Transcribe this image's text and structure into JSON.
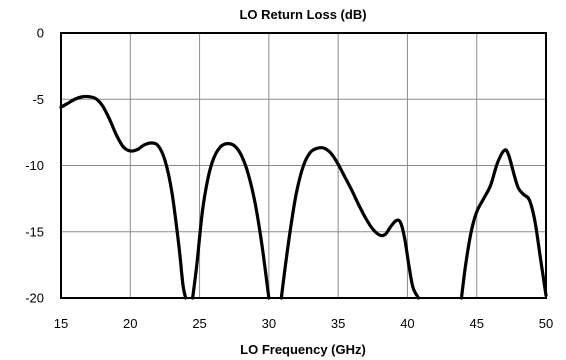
{
  "chart_data": {
    "type": "line",
    "title": "LO Return Loss (dB)",
    "xlabel": "LO Frequency (GHz)",
    "ylabel": "",
    "xlim": [
      15,
      50
    ],
    "ylim": [
      -20,
      0
    ],
    "xticks": [
      15,
      20,
      25,
      30,
      35,
      40,
      45,
      50
    ],
    "yticks": [
      0,
      -5,
      -10,
      -15,
      -20
    ],
    "grid": true,
    "legend": "none",
    "series": [
      {
        "segments": [
          [
            [
              15.0,
              -5.6
            ],
            [
              15.5,
              -5.3
            ],
            [
              16.0,
              -5.0
            ],
            [
              16.5,
              -4.82
            ],
            [
              17.0,
              -4.8
            ],
            [
              17.5,
              -4.95
            ],
            [
              18.0,
              -5.5
            ],
            [
              18.5,
              -6.5
            ],
            [
              19.0,
              -7.7
            ],
            [
              19.5,
              -8.6
            ],
            [
              20.0,
              -8.9
            ],
            [
              20.5,
              -8.8
            ],
            [
              21.0,
              -8.45
            ],
            [
              21.5,
              -8.3
            ],
            [
              22.0,
              -8.5
            ],
            [
              22.5,
              -9.6
            ],
            [
              23.0,
              -12.0
            ],
            [
              23.5,
              -16.0
            ],
            [
              23.8,
              -19.0
            ],
            [
              24.0,
              -20.0
            ]
          ],
          [
            [
              24.5,
              -20.0
            ],
            [
              24.8,
              -17.5
            ],
            [
              25.2,
              -13.5
            ],
            [
              25.6,
              -11.0
            ],
            [
              26.0,
              -9.5
            ],
            [
              26.5,
              -8.6
            ],
            [
              27.0,
              -8.35
            ],
            [
              27.5,
              -8.5
            ],
            [
              28.0,
              -9.2
            ],
            [
              28.5,
              -10.6
            ],
            [
              29.0,
              -12.8
            ],
            [
              29.5,
              -16.0
            ],
            [
              30.0,
              -20.0
            ]
          ],
          [
            [
              30.9,
              -20.0
            ],
            [
              31.2,
              -17.5
            ],
            [
              31.6,
              -14.5
            ],
            [
              32.0,
              -12.0
            ],
            [
              32.5,
              -10.0
            ],
            [
              33.0,
              -9.0
            ],
            [
              33.5,
              -8.7
            ],
            [
              34.0,
              -8.7
            ],
            [
              34.5,
              -9.1
            ],
            [
              35.0,
              -9.9
            ],
            [
              35.5,
              -10.9
            ],
            [
              36.0,
              -11.9
            ],
            [
              36.5,
              -13.0
            ],
            [
              37.0,
              -14.0
            ],
            [
              37.5,
              -14.8
            ],
            [
              38.0,
              -15.25
            ],
            [
              38.4,
              -15.2
            ],
            [
              38.8,
              -14.6
            ],
            [
              39.2,
              -14.15
            ],
            [
              39.5,
              -14.3
            ],
            [
              39.8,
              -15.5
            ],
            [
              40.1,
              -17.5
            ],
            [
              40.4,
              -19.2
            ],
            [
              40.8,
              -20.0
            ]
          ],
          [
            [
              43.9,
              -20.0
            ],
            [
              44.2,
              -17.5
            ],
            [
              44.6,
              -15.0
            ],
            [
              45.0,
              -13.5
            ],
            [
              45.5,
              -12.5
            ],
            [
              46.0,
              -11.5
            ],
            [
              46.5,
              -9.8
            ],
            [
              47.0,
              -8.85
            ],
            [
              47.3,
              -9.2
            ],
            [
              47.7,
              -10.7
            ],
            [
              48.0,
              -11.7
            ],
            [
              48.4,
              -12.2
            ],
            [
              48.8,
              -12.6
            ],
            [
              49.2,
              -14.2
            ],
            [
              49.6,
              -17.0
            ],
            [
              50.0,
              -19.8
            ]
          ]
        ]
      }
    ]
  }
}
